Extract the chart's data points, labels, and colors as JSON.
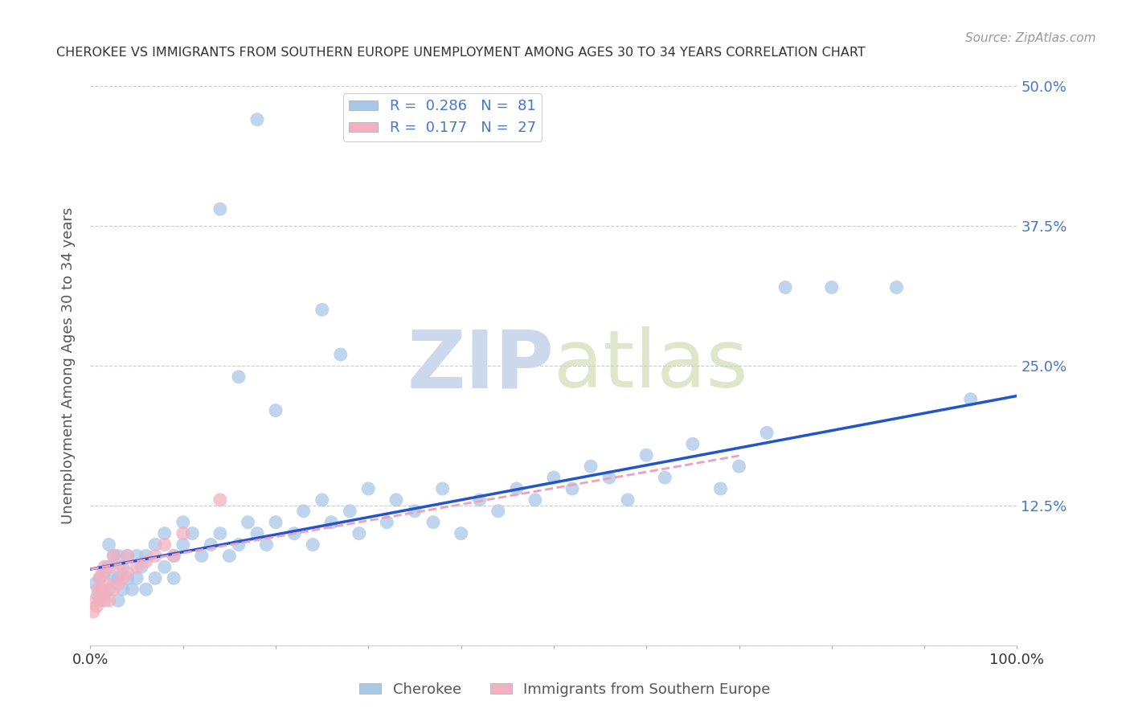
{
  "title": "CHEROKEE VS IMMIGRANTS FROM SOUTHERN EUROPE UNEMPLOYMENT AMONG AGES 30 TO 34 YEARS CORRELATION CHART",
  "source": "Source: ZipAtlas.com",
  "ylabel": "Unemployment Among Ages 30 to 34 years",
  "xlim": [
    0,
    1.0
  ],
  "ylim": [
    0,
    0.5
  ],
  "ytick_labels_right": [
    "",
    "12.5%",
    "25.0%",
    "37.5%",
    "50.0%"
  ],
  "yticks": [
    0.0,
    0.125,
    0.25,
    0.375,
    0.5
  ],
  "cherokee_color": "#a8c8e8",
  "immigrant_color": "#f4b0c0",
  "cherokee_line_color": "#2255cc",
  "immigrant_line_color": "#f0a0b8",
  "cherokee_R": 0.286,
  "cherokee_N": 81,
  "immigrant_R": 0.177,
  "immigrant_N": 27,
  "background_color": "#ffffff",
  "grid_color": "#cccccc",
  "title_color": "#333333",
  "source_color": "#999999",
  "tick_label_color": "#4477cc",
  "ylabel_color": "#555555",
  "watermark_color": "#ccd8ec",
  "cherokee_line_intercept": 0.068,
  "cherokee_line_slope": 0.155,
  "immigrant_line_intercept": 0.068,
  "immigrant_line_slope": 0.145,
  "cherokee_x": [
    0.005,
    0.008,
    0.01,
    0.012,
    0.015,
    0.015,
    0.018,
    0.02,
    0.02,
    0.025,
    0.025,
    0.03,
    0.03,
    0.03,
    0.035,
    0.035,
    0.04,
    0.04,
    0.045,
    0.05,
    0.05,
    0.055,
    0.06,
    0.06,
    0.07,
    0.07,
    0.08,
    0.08,
    0.09,
    0.09,
    0.1,
    0.1,
    0.11,
    0.12,
    0.13,
    0.14,
    0.15,
    0.16,
    0.17,
    0.18,
    0.19,
    0.2,
    0.22,
    0.23,
    0.24,
    0.25,
    0.26,
    0.28,
    0.29,
    0.3,
    0.32,
    0.33,
    0.35,
    0.37,
    0.38,
    0.4,
    0.42,
    0.44,
    0.46,
    0.48,
    0.5,
    0.52,
    0.54,
    0.56,
    0.58,
    0.6,
    0.62,
    0.65,
    0.68,
    0.7,
    0.73,
    0.75,
    0.16,
    0.2,
    0.25,
    0.27,
    0.14,
    0.18,
    0.8,
    0.87,
    0.95
  ],
  "cherokee_y": [
    0.055,
    0.045,
    0.06,
    0.05,
    0.065,
    0.04,
    0.07,
    0.05,
    0.09,
    0.06,
    0.08,
    0.04,
    0.06,
    0.08,
    0.05,
    0.07,
    0.06,
    0.08,
    0.05,
    0.06,
    0.08,
    0.07,
    0.05,
    0.08,
    0.06,
    0.09,
    0.07,
    0.1,
    0.08,
    0.06,
    0.09,
    0.11,
    0.1,
    0.08,
    0.09,
    0.1,
    0.08,
    0.09,
    0.11,
    0.1,
    0.09,
    0.11,
    0.1,
    0.12,
    0.09,
    0.13,
    0.11,
    0.12,
    0.1,
    0.14,
    0.11,
    0.13,
    0.12,
    0.11,
    0.14,
    0.1,
    0.13,
    0.12,
    0.14,
    0.13,
    0.15,
    0.14,
    0.16,
    0.15,
    0.13,
    0.17,
    0.15,
    0.18,
    0.14,
    0.16,
    0.19,
    0.32,
    0.24,
    0.21,
    0.3,
    0.26,
    0.39,
    0.47,
    0.32,
    0.32,
    0.22
  ],
  "immigrant_x": [
    0.003,
    0.005,
    0.007,
    0.008,
    0.01,
    0.01,
    0.012,
    0.013,
    0.015,
    0.015,
    0.018,
    0.02,
    0.02,
    0.025,
    0.025,
    0.03,
    0.03,
    0.035,
    0.04,
    0.04,
    0.05,
    0.06,
    0.07,
    0.08,
    0.09,
    0.1,
    0.14
  ],
  "immigrant_y": [
    0.03,
    0.04,
    0.035,
    0.05,
    0.04,
    0.06,
    0.05,
    0.065,
    0.045,
    0.07,
    0.055,
    0.04,
    0.07,
    0.05,
    0.08,
    0.055,
    0.07,
    0.06,
    0.065,
    0.08,
    0.07,
    0.075,
    0.08,
    0.09,
    0.08,
    0.1,
    0.13
  ]
}
